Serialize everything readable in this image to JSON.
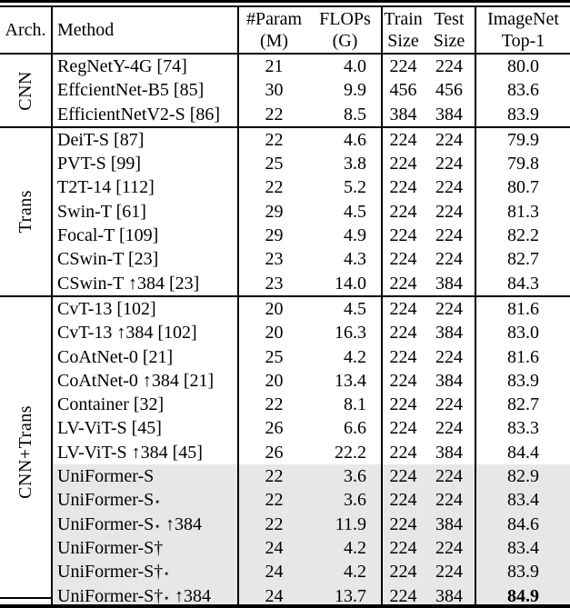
{
  "colors": {
    "highlight": "#e7e7e7",
    "text": "#000000",
    "border": "#000000",
    "background": "#ffffff"
  },
  "table": {
    "header": {
      "arch": "Arch.",
      "method": "Method",
      "param_line1": "#Param",
      "param_line2": "(M)",
      "flops_line1": "FLOPs",
      "flops_line2": "(G)",
      "train_line1": "Train",
      "train_line2": "Size",
      "test_line1": "Test",
      "test_line2": "Size",
      "imagenet_line1": "ImageNet",
      "imagenet_line2": "Top-1"
    },
    "sections": [
      {
        "arch": "CNN",
        "rows": [
          {
            "method": "RegNetY-4G [74]",
            "param": "21",
            "flops": "4.0",
            "train": "224",
            "test": "224",
            "top1": "80.0",
            "highlight": false,
            "top1_bold": false
          },
          {
            "method": "EffcientNet-B5 [85]",
            "param": "30",
            "flops": "9.9",
            "train": "456",
            "test": "456",
            "top1": "83.6",
            "highlight": false,
            "top1_bold": false
          },
          {
            "method": "EfficientNetV2-S [86]",
            "param": "22",
            "flops": "8.5",
            "train": "384",
            "test": "384",
            "top1": "83.9",
            "highlight": false,
            "top1_bold": false
          }
        ]
      },
      {
        "arch": "Trans",
        "rows": [
          {
            "method": "DeiT-S [87]",
            "param": "22",
            "flops": "4.6",
            "train": "224",
            "test": "224",
            "top1": "79.9",
            "highlight": false,
            "top1_bold": false
          },
          {
            "method": "PVT-S [99]",
            "param": "25",
            "flops": "3.8",
            "train": "224",
            "test": "224",
            "top1": "79.8",
            "highlight": false,
            "top1_bold": false
          },
          {
            "method": "T2T-14 [112]",
            "param": "22",
            "flops": "5.2",
            "train": "224",
            "test": "224",
            "top1": "80.7",
            "highlight": false,
            "top1_bold": false
          },
          {
            "method": "Swin-T [61]",
            "param": "29",
            "flops": "4.5",
            "train": "224",
            "test": "224",
            "top1": "81.3",
            "highlight": false,
            "top1_bold": false
          },
          {
            "method": "Focal-T [109]",
            "param": "29",
            "flops": "4.9",
            "train": "224",
            "test": "224",
            "top1": "82.2",
            "highlight": false,
            "top1_bold": false
          },
          {
            "method": "CSwin-T [23]",
            "param": "23",
            "flops": "4.3",
            "train": "224",
            "test": "224",
            "top1": "82.7",
            "highlight": false,
            "top1_bold": false
          },
          {
            "method": "CSwin-T ↑384 [23]",
            "param": "23",
            "flops": "14.0",
            "train": "224",
            "test": "384",
            "top1": "84.3",
            "highlight": false,
            "top1_bold": false
          }
        ]
      },
      {
        "arch": "CNN+Trans",
        "rows": [
          {
            "method": "CvT-13 [102]",
            "param": "20",
            "flops": "4.5",
            "train": "224",
            "test": "224",
            "top1": "81.6",
            "highlight": false,
            "top1_bold": false
          },
          {
            "method": "CvT-13 ↑384 [102]",
            "param": "20",
            "flops": "16.3",
            "train": "224",
            "test": "384",
            "top1": "83.0",
            "highlight": false,
            "top1_bold": false
          },
          {
            "method": "CoAtNet-0 [21]",
            "param": "25",
            "flops": "4.2",
            "train": "224",
            "test": "224",
            "top1": "81.6",
            "highlight": false,
            "top1_bold": false
          },
          {
            "method": "CoAtNet-0 ↑384 [21]",
            "param": "20",
            "flops": "13.4",
            "train": "224",
            "test": "384",
            "top1": "83.9",
            "highlight": false,
            "top1_bold": false
          },
          {
            "method": "Container [32]",
            "param": "22",
            "flops": "8.1",
            "train": "224",
            "test": "224",
            "top1": "82.7",
            "highlight": false,
            "top1_bold": false
          },
          {
            "method": "LV-ViT-S [45]",
            "param": "26",
            "flops": "6.6",
            "train": "224",
            "test": "224",
            "top1": "83.3",
            "highlight": false,
            "top1_bold": false
          },
          {
            "method": "LV-ViT-S ↑384 [45]",
            "param": "26",
            "flops": "22.2",
            "train": "224",
            "test": "384",
            "top1": "84.4",
            "highlight": false,
            "top1_bold": false
          },
          {
            "method": "UniFormer-S",
            "param": "22",
            "flops": "3.6",
            "train": "224",
            "test": "224",
            "top1": "82.9",
            "highlight": true,
            "top1_bold": false
          },
          {
            "method": "UniFormer-S⋆",
            "param": "22",
            "flops": "3.6",
            "train": "224",
            "test": "224",
            "top1": "83.4",
            "highlight": true,
            "top1_bold": false
          },
          {
            "method": "UniFormer-S⋆ ↑384",
            "param": "22",
            "flops": "11.9",
            "train": "224",
            "test": "384",
            "top1": "84.6",
            "highlight": true,
            "top1_bold": false
          },
          {
            "method": "UniFormer-S†",
            "param": "24",
            "flops": "4.2",
            "train": "224",
            "test": "224",
            "top1": "83.4",
            "highlight": true,
            "top1_bold": false
          },
          {
            "method": "UniFormer-S†⋆",
            "param": "24",
            "flops": "4.2",
            "train": "224",
            "test": "224",
            "top1": "83.9",
            "highlight": true,
            "top1_bold": false
          },
          {
            "method": "UniFormer-S†⋆ ↑384",
            "param": "24",
            "flops": "13.7",
            "train": "224",
            "test": "384",
            "top1": "84.9",
            "highlight": true,
            "top1_bold": true
          }
        ]
      }
    ]
  }
}
